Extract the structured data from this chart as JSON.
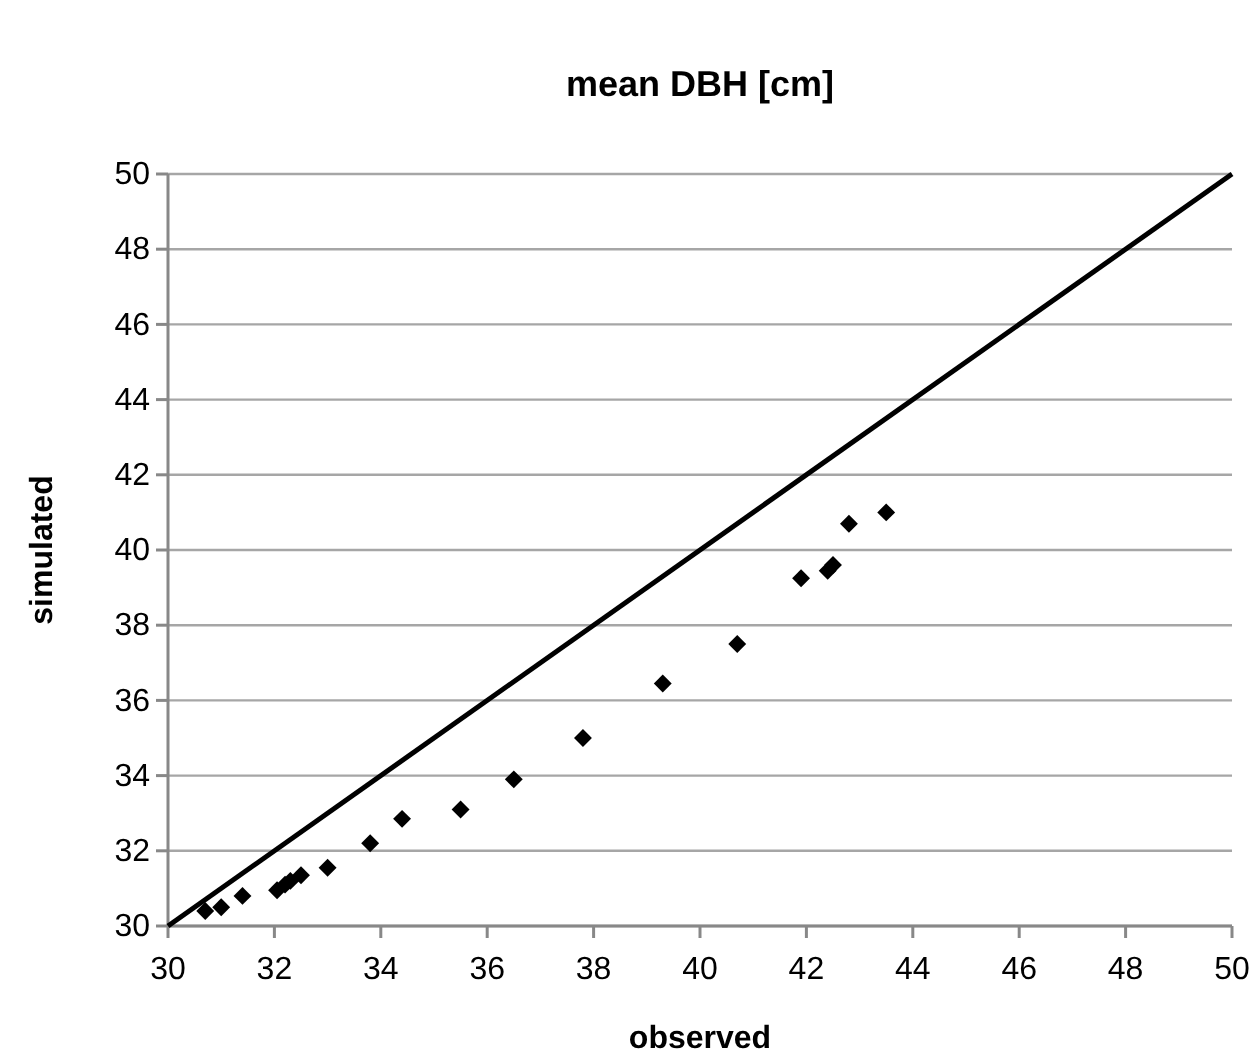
{
  "chart_data": {
    "type": "scatter",
    "title": "mean DBH [cm]",
    "xlabel": "observed",
    "ylabel": "simulated",
    "xlim": [
      30,
      50
    ],
    "xticks": [
      30,
      32,
      34,
      36,
      38,
      40,
      42,
      44,
      46,
      48,
      50
    ],
    "ylim": [
      30,
      50
    ],
    "yticks": [
      30,
      32,
      34,
      36,
      38,
      40,
      42,
      44,
      46,
      48,
      50
    ],
    "grid": "y",
    "series": [
      {
        "marker": "diamond",
        "color": "#000000",
        "x": [
          30.7,
          31.0,
          31.4,
          32.05,
          32.2,
          32.3,
          32.5,
          33.0,
          33.8,
          34.4,
          35.5,
          36.5,
          37.8,
          39.3,
          40.7,
          41.9,
          42.4,
          42.5,
          42.8,
          43.5
        ],
        "values": [
          30.4,
          30.5,
          30.8,
          30.95,
          31.1,
          31.2,
          31.35,
          31.55,
          32.2,
          32.85,
          33.1,
          33.9,
          35.0,
          36.45,
          37.5,
          39.25,
          39.45,
          39.6,
          40.7,
          41.0
        ]
      },
      {
        "type": "line",
        "marker": "none",
        "color": "#000000",
        "line_style": "solid",
        "x": [
          30,
          50
        ],
        "values": [
          30,
          50
        ]
      }
    ]
  }
}
